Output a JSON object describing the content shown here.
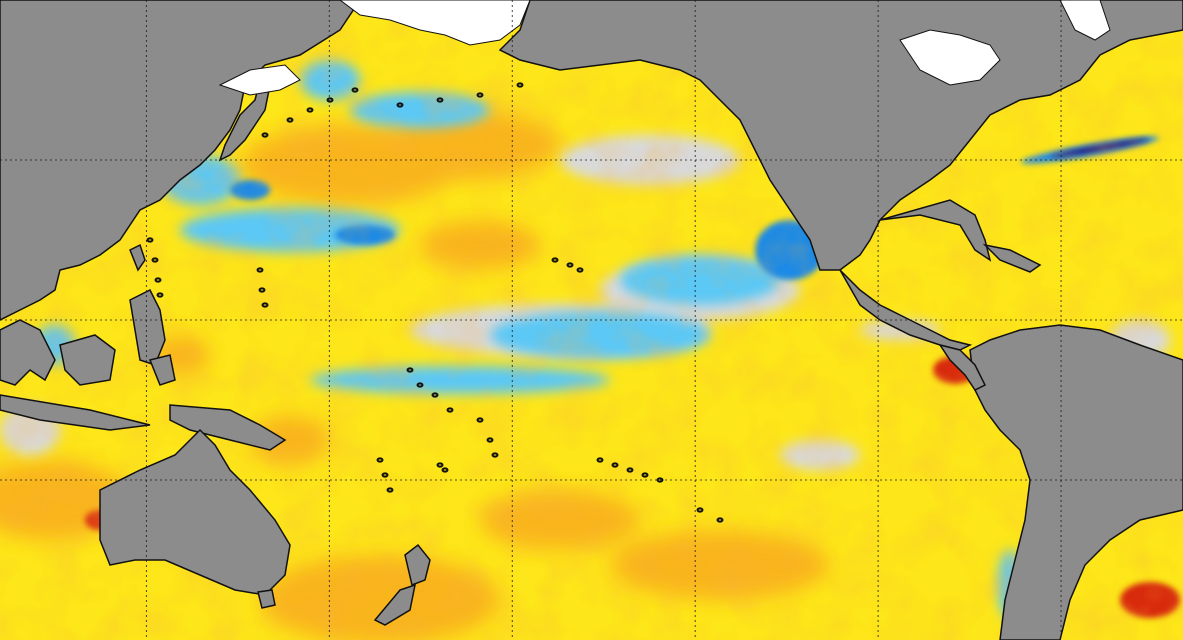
{
  "map": {
    "projection": "equirectangular",
    "extent": {
      "lon": [
        96,
        290
      ],
      "lat": [
        -60,
        60
      ]
    },
    "gridlines": {
      "lon": [
        120,
        150,
        180,
        210,
        240,
        270
      ],
      "lat": [
        -30,
        0,
        30
      ],
      "style": "dotted-black"
    },
    "coastline_color": "#111111"
  },
  "colors": {
    "land": "#8c8c8c",
    "sea_ice": "#ffffff",
    "anomaly_near_zero": "#d9d9d9",
    "anomaly_warm_weak": "#fde619",
    "anomaly_warm": "#f9b51a",
    "anomaly_warm_strong": "#f2700e",
    "anomaly_warm_extreme": "#d82a10",
    "anomaly_cool_weak": "#5cc8f5",
    "anomaly_cool": "#1f8ae6",
    "anomaly_cool_strong": "#1c3fd8",
    "anomaly_cool_extreme": "#2a1470"
  },
  "icons": {
    "map": "sea-surface-temperature-anomaly-map"
  }
}
